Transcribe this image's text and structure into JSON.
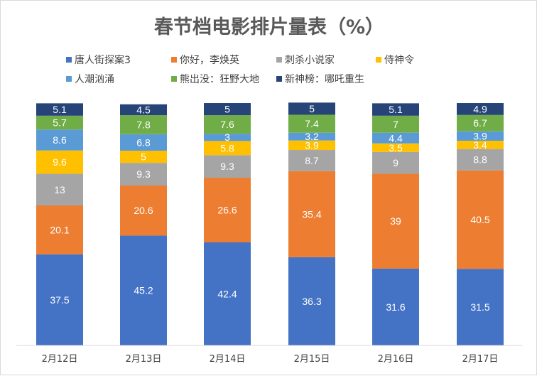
{
  "chart_data": {
    "type": "bar",
    "stacked": true,
    "title": "春节档电影排片量表（%）",
    "categories": [
      "2月12日",
      "2月13日",
      "2月14日",
      "2月15日",
      "2月16日",
      "2月17日"
    ],
    "ylim": [
      0,
      100
    ],
    "grid": false,
    "legend_position": "top",
    "series": [
      {
        "name": "唐人街探案3",
        "color": "#4472c4",
        "values": [
          37.5,
          45.2,
          42.4,
          36.3,
          31.6,
          31.5
        ]
      },
      {
        "name": "你好，李焕英",
        "color": "#ed7d31",
        "values": [
          20.1,
          20.6,
          26.6,
          35.4,
          39,
          40.5
        ]
      },
      {
        "name": "刺杀小说家",
        "color": "#a5a5a5",
        "values": [
          13,
          9.3,
          9.3,
          8.7,
          9,
          8.8
        ]
      },
      {
        "name": "侍神令",
        "color": "#ffc000",
        "values": [
          9.6,
          5,
          5.8,
          3.9,
          3.5,
          3.4
        ]
      },
      {
        "name": "人潮汹涌",
        "color": "#5b9bd5",
        "values": [
          8.6,
          6.8,
          3,
          3.2,
          4.4,
          3.9
        ]
      },
      {
        "name": "熊出没：狂野大地",
        "color": "#70ad47",
        "values": [
          5.7,
          7.8,
          7.6,
          7.4,
          7,
          6.7
        ]
      },
      {
        "name": "新神榜：哪吒重生",
        "color": "#264478",
        "values": [
          5.1,
          4.5,
          5,
          5,
          5.1,
          4.9
        ]
      }
    ]
  }
}
